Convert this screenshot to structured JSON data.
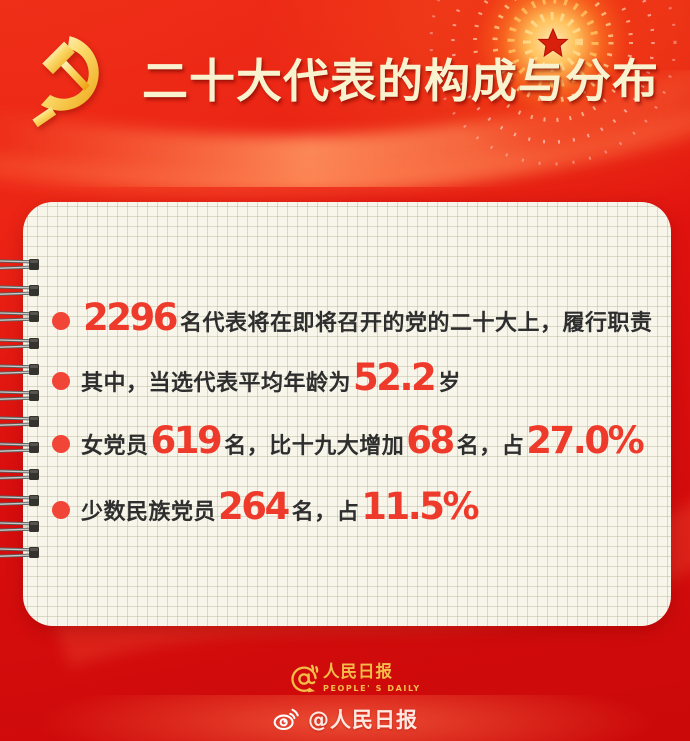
{
  "header": {
    "title": "二十大代表的构成与分布"
  },
  "card": {
    "binder_rings": 12,
    "bullets": [
      {
        "segments": [
          {
            "text": "2296",
            "emphasis": true
          },
          {
            "text": "名代表将在即将召开的党的二十大上，履行职责",
            "emphasis": false
          }
        ]
      },
      {
        "segments": [
          {
            "text": "其中，当选代表平均年龄为",
            "emphasis": false
          },
          {
            "text": "52.2",
            "emphasis": true
          },
          {
            "text": "岁",
            "emphasis": false
          }
        ]
      },
      {
        "segments": [
          {
            "text": "女党员",
            "emphasis": false
          },
          {
            "text": "619",
            "emphasis": true
          },
          {
            "text": "名，比十九大增加",
            "emphasis": false
          },
          {
            "text": "68",
            "emphasis": true
          },
          {
            "text": "名，占",
            "emphasis": false
          },
          {
            "text": "27.0%",
            "emphasis": true
          }
        ]
      },
      {
        "segments": [
          {
            "text": "少数民族党员",
            "emphasis": false
          },
          {
            "text": "264",
            "emphasis": true
          },
          {
            "text": "名，占",
            "emphasis": false
          },
          {
            "text": "11.5%",
            "emphasis": true
          }
        ]
      }
    ]
  },
  "footer": {
    "logo_cn": "人民日报",
    "logo_en": "PEOPLE' S DAILY",
    "weibo_handle": "@人民日报"
  },
  "colors": {
    "background_red": "#e51510",
    "stat_number_red": "#ee3a2b",
    "bullet_dot_red": "#f14537",
    "title_cream": "#f9f2cf",
    "logo_gold": "#f3bd4a",
    "body_text_dark": "#2e2e2e",
    "card_paper": "#f8f6ea"
  }
}
